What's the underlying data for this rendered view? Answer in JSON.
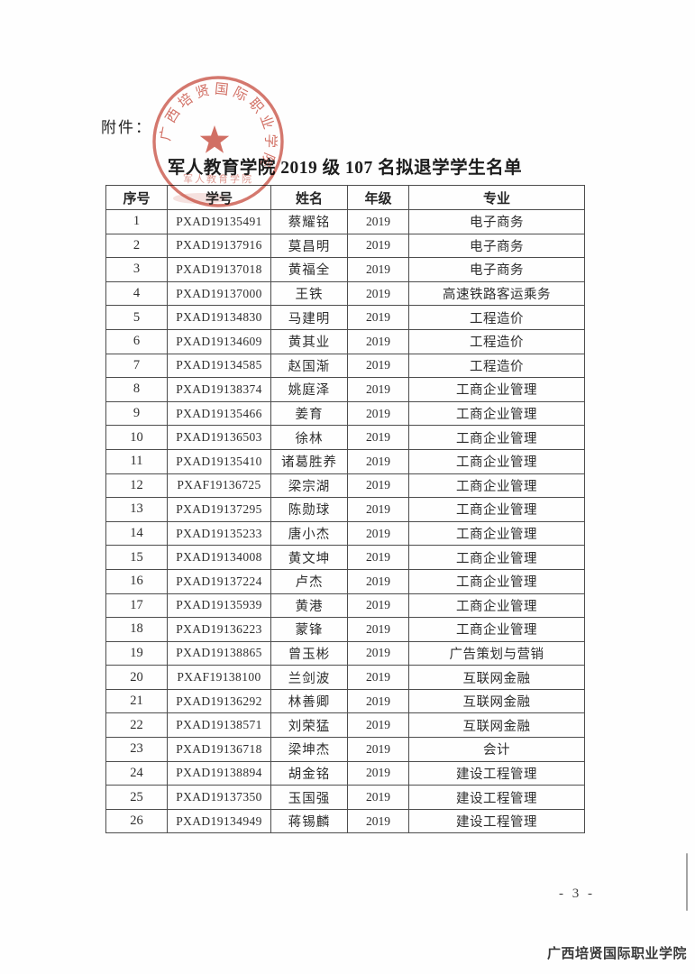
{
  "page": {
    "attachment_label": "附件：",
    "title": "军人教育学院 2019 级 107 名拟退学学生名单",
    "page_number": "- 3 -",
    "footer": "广西培贤国际职业学院"
  },
  "seal": {
    "ring_text": "广西培贤国际职业学院",
    "inner_text": "军人教育学院",
    "color": "#c74b3d"
  },
  "table": {
    "headers": [
      "序号",
      "学号",
      "姓名",
      "年级",
      "专业"
    ],
    "rows": [
      [
        "1",
        "PXAD19135491",
        "蔡耀铭",
        "2019",
        "电子商务"
      ],
      [
        "2",
        "PXAD19137916",
        "莫昌明",
        "2019",
        "电子商务"
      ],
      [
        "3",
        "PXAD19137018",
        "黄福全",
        "2019",
        "电子商务"
      ],
      [
        "4",
        "PXAD19137000",
        "王铁",
        "2019",
        "高速铁路客运乘务"
      ],
      [
        "5",
        "PXAD19134830",
        "马建明",
        "2019",
        "工程造价"
      ],
      [
        "6",
        "PXAD19134609",
        "黄其业",
        "2019",
        "工程造价"
      ],
      [
        "7",
        "PXAD19134585",
        "赵国渐",
        "2019",
        "工程造价"
      ],
      [
        "8",
        "PXAD19138374",
        "姚庭泽",
        "2019",
        "工商企业管理"
      ],
      [
        "9",
        "PXAD19135466",
        "姜育",
        "2019",
        "工商企业管理"
      ],
      [
        "10",
        "PXAD19136503",
        "徐林",
        "2019",
        "工商企业管理"
      ],
      [
        "11",
        "PXAD19135410",
        "诸葛胜养",
        "2019",
        "工商企业管理"
      ],
      [
        "12",
        "PXAF19136725",
        "梁宗湖",
        "2019",
        "工商企业管理"
      ],
      [
        "13",
        "PXAD19137295",
        "陈勋球",
        "2019",
        "工商企业管理"
      ],
      [
        "14",
        "PXAD19135233",
        "唐小杰",
        "2019",
        "工商企业管理"
      ],
      [
        "15",
        "PXAD19134008",
        "黄文坤",
        "2019",
        "工商企业管理"
      ],
      [
        "16",
        "PXAD19137224",
        "卢杰",
        "2019",
        "工商企业管理"
      ],
      [
        "17",
        "PXAD19135939",
        "黄港",
        "2019",
        "工商企业管理"
      ],
      [
        "18",
        "PXAD19136223",
        "蒙锋",
        "2019",
        "工商企业管理"
      ],
      [
        "19",
        "PXAD19138865",
        "曾玉彬",
        "2019",
        "广告策划与营销"
      ],
      [
        "20",
        "PXAF19138100",
        "兰剑波",
        "2019",
        "互联网金融"
      ],
      [
        "21",
        "PXAD19136292",
        "林善卿",
        "2019",
        "互联网金融"
      ],
      [
        "22",
        "PXAD19138571",
        "刘荣猛",
        "2019",
        "互联网金融"
      ],
      [
        "23",
        "PXAD19136718",
        "梁坤杰",
        "2019",
        "会计"
      ],
      [
        "24",
        "PXAD19138894",
        "胡金铭",
        "2019",
        "建设工程管理"
      ],
      [
        "25",
        "PXAD19137350",
        "玉国强",
        "2019",
        "建设工程管理"
      ],
      [
        "26",
        "PXAD19134949",
        "蒋锡麟",
        "2019",
        "建设工程管理"
      ]
    ]
  }
}
